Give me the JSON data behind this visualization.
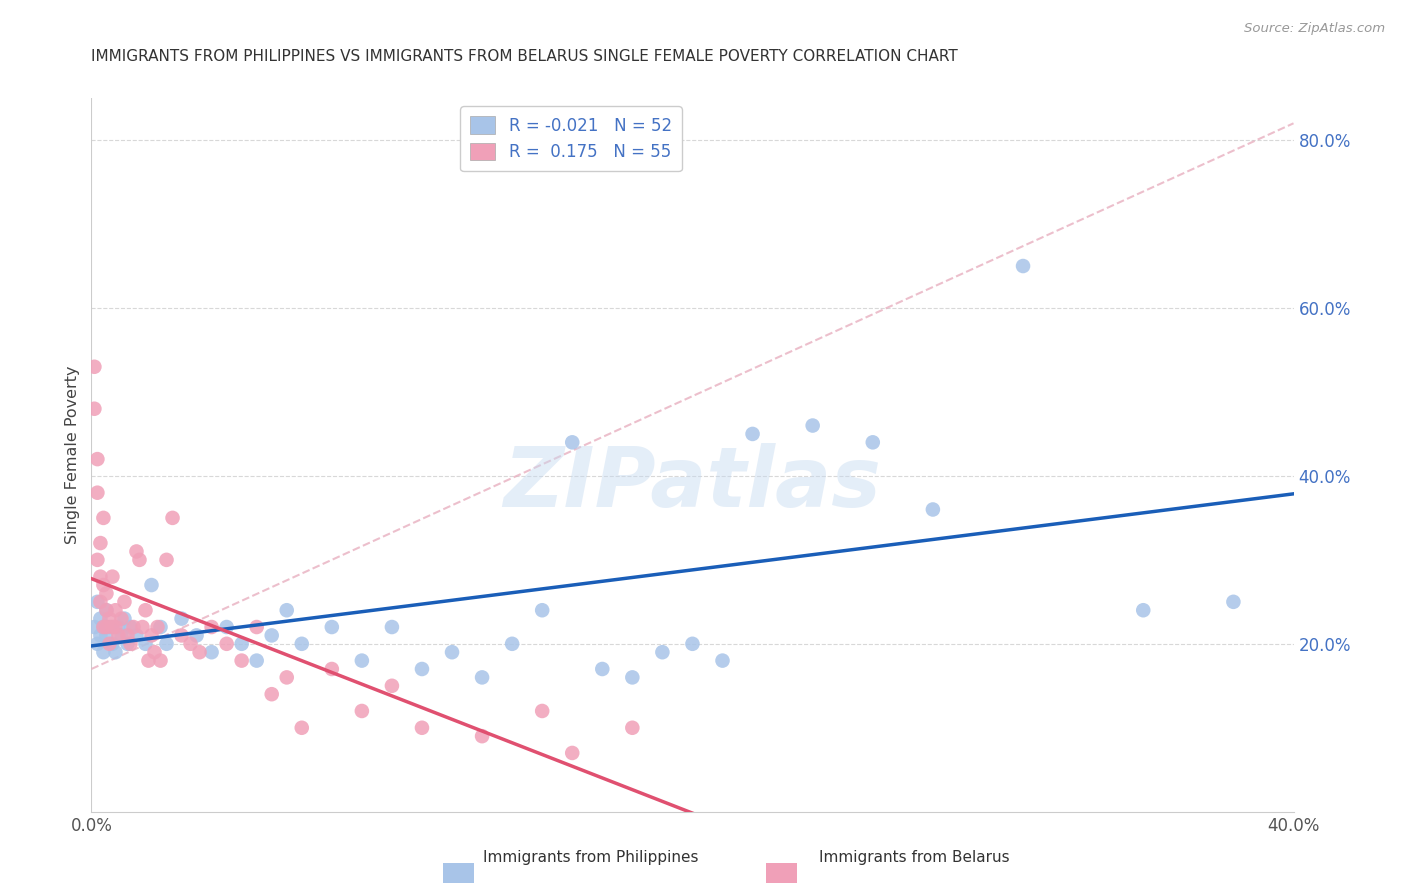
{
  "title": "IMMIGRANTS FROM PHILIPPINES VS IMMIGRANTS FROM BELARUS SINGLE FEMALE POVERTY CORRELATION CHART",
  "source": "Source: ZipAtlas.com",
  "ylabel": "Single Female Poverty",
  "xlim": [
    0.0,
    0.4
  ],
  "ylim": [
    0.0,
    0.85
  ],
  "right_yticks": [
    0.2,
    0.4,
    0.6,
    0.8
  ],
  "right_yticklabels": [
    "20.0%",
    "40.0%",
    "60.0%",
    "80.0%"
  ],
  "xticks": [
    0.0,
    0.05,
    0.1,
    0.15,
    0.2,
    0.25,
    0.3,
    0.35,
    0.4
  ],
  "philippines_color": "#a8c4e8",
  "belarus_color": "#f0a0b8",
  "trend_philippines_color": "#1a5eb8",
  "trend_belarus_color": "#e05070",
  "diagonal_color": "#e8b0c0",
  "R_philippines": -0.021,
  "N_philippines": 52,
  "R_belarus": 0.175,
  "N_belarus": 55,
  "philippines_x": [
    0.001,
    0.002,
    0.002,
    0.003,
    0.003,
    0.004,
    0.004,
    0.005,
    0.005,
    0.006,
    0.007,
    0.008,
    0.009,
    0.01,
    0.011,
    0.012,
    0.013,
    0.015,
    0.018,
    0.02,
    0.023,
    0.025,
    0.03,
    0.035,
    0.04,
    0.045,
    0.05,
    0.055,
    0.06,
    0.065,
    0.07,
    0.08,
    0.09,
    0.1,
    0.11,
    0.12,
    0.13,
    0.14,
    0.15,
    0.16,
    0.17,
    0.18,
    0.19,
    0.2,
    0.21,
    0.22,
    0.24,
    0.26,
    0.28,
    0.31,
    0.35,
    0.38
  ],
  "philippines_y": [
    0.22,
    0.2,
    0.25,
    0.21,
    0.23,
    0.22,
    0.19,
    0.21,
    0.24,
    0.22,
    0.2,
    0.19,
    0.22,
    0.21,
    0.23,
    0.2,
    0.22,
    0.21,
    0.2,
    0.27,
    0.22,
    0.2,
    0.23,
    0.21,
    0.19,
    0.22,
    0.2,
    0.18,
    0.21,
    0.24,
    0.2,
    0.22,
    0.18,
    0.22,
    0.17,
    0.19,
    0.16,
    0.2,
    0.24,
    0.44,
    0.17,
    0.16,
    0.19,
    0.2,
    0.18,
    0.45,
    0.46,
    0.44,
    0.36,
    0.65,
    0.24,
    0.25
  ],
  "belarus_x": [
    0.001,
    0.001,
    0.002,
    0.002,
    0.002,
    0.003,
    0.003,
    0.003,
    0.004,
    0.004,
    0.004,
    0.005,
    0.005,
    0.005,
    0.006,
    0.006,
    0.007,
    0.007,
    0.008,
    0.008,
    0.009,
    0.01,
    0.011,
    0.012,
    0.013,
    0.014,
    0.015,
    0.016,
    0.017,
    0.018,
    0.019,
    0.02,
    0.021,
    0.022,
    0.023,
    0.025,
    0.027,
    0.03,
    0.033,
    0.036,
    0.04,
    0.045,
    0.05,
    0.055,
    0.06,
    0.065,
    0.07,
    0.08,
    0.09,
    0.1,
    0.11,
    0.13,
    0.15,
    0.16,
    0.18
  ],
  "belarus_y": [
    0.53,
    0.48,
    0.42,
    0.38,
    0.3,
    0.32,
    0.28,
    0.25,
    0.35,
    0.27,
    0.22,
    0.24,
    0.26,
    0.22,
    0.23,
    0.2,
    0.22,
    0.28,
    0.24,
    0.22,
    0.21,
    0.23,
    0.25,
    0.21,
    0.2,
    0.22,
    0.31,
    0.3,
    0.22,
    0.24,
    0.18,
    0.21,
    0.19,
    0.22,
    0.18,
    0.3,
    0.35,
    0.21,
    0.2,
    0.19,
    0.22,
    0.2,
    0.18,
    0.22,
    0.14,
    0.16,
    0.1,
    0.17,
    0.12,
    0.15,
    0.1,
    0.09,
    0.12,
    0.07,
    0.1
  ],
  "watermark_text": "ZIPatlas",
  "background_color": "#ffffff",
  "grid_color": "#d8d8d8"
}
